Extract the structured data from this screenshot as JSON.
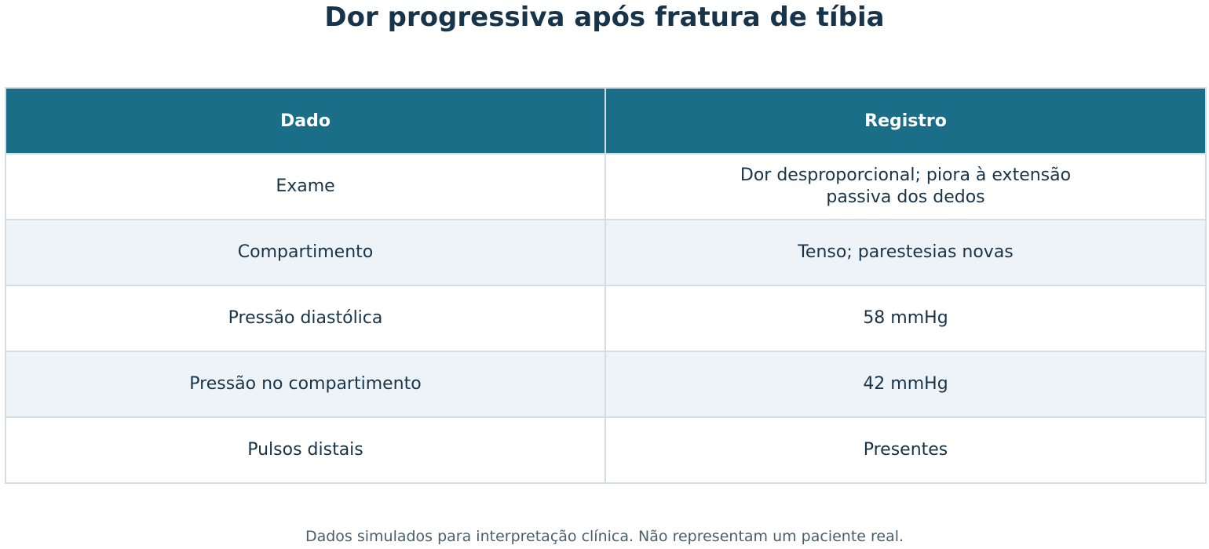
{
  "chart_data": {
    "type": "table",
    "title": "Dor progressiva após fratura de tíbia",
    "columns": [
      "Dado",
      "Registro"
    ],
    "rows": [
      [
        "Exame",
        "Dor desproporcional; piora à extensão passiva dos dedos"
      ],
      [
        "Compartimento",
        "Tenso; parestesias novas"
      ],
      [
        "Pressão diastólica",
        "58 mmHg"
      ],
      [
        "Pressão no compartimento",
        "42 mmHg"
      ],
      [
        "Pulsos distais",
        "Presentes"
      ]
    ],
    "footnote": "Dados simulados para interpretação clínica. Não representam um paciente real."
  },
  "colors": {
    "header_background": "#1a6e88",
    "header_text": "#ffffff",
    "body_text": "#18344a",
    "row_alt_background": "#eef3f7",
    "border": "#d3dde5",
    "footnote_text": "#4a5f6e"
  }
}
